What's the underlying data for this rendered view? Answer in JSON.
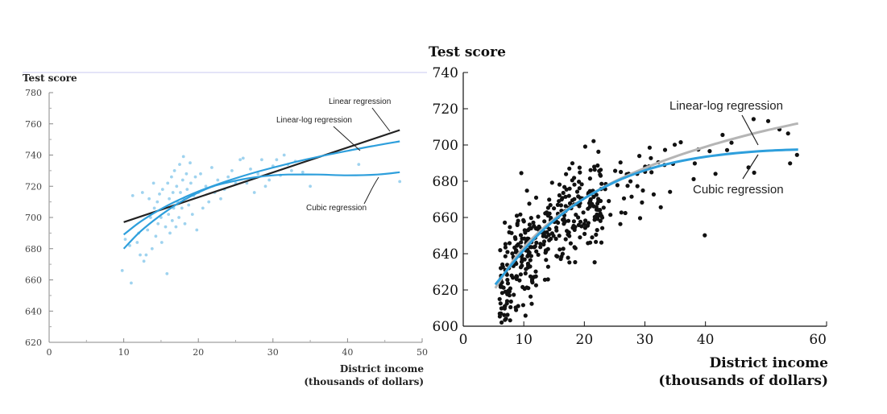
{
  "chart_data": [
    {
      "type": "scatter",
      "ylabel": "Test score",
      "xlabel_line1": "District income",
      "xlabel_line2": "(thousands of dollars)",
      "xlim": [
        0,
        50
      ],
      "ylim": [
        620,
        780
      ],
      "x_ticks": [
        "0",
        "10",
        "20",
        "30",
        "40",
        "50"
      ],
      "y_ticks": [
        "620",
        "640",
        "660",
        "680",
        "700",
        "720",
        "740",
        "760",
        "780"
      ],
      "colors": {
        "points": "#9fd3ef",
        "linear": "#222222",
        "quadratic": "#2e9fdc",
        "cubic": "#2e9fdc"
      },
      "points": [
        [
          9.8,
          666
        ],
        [
          10.2,
          686
        ],
        [
          10.8,
          682
        ],
        [
          11,
          658
        ],
        [
          11.2,
          714
        ],
        [
          11.8,
          684
        ],
        [
          12,
          690
        ],
        [
          12.2,
          676
        ],
        [
          12.5,
          716
        ],
        [
          12.7,
          672
        ],
        [
          13,
          676
        ],
        [
          13.2,
          692
        ],
        [
          13.4,
          712
        ],
        [
          13.6,
          700
        ],
        [
          13.8,
          680
        ],
        [
          14,
          722
        ],
        [
          14.1,
          706
        ],
        [
          14.3,
          688
        ],
        [
          14.5,
          710
        ],
        [
          14.6,
          696
        ],
        [
          14.8,
          715
        ],
        [
          15,
          700
        ],
        [
          15.1,
          684
        ],
        [
          15.2,
          718
        ],
        [
          15.4,
          706
        ],
        [
          15.6,
          694
        ],
        [
          15.8,
          664
        ],
        [
          15.9,
          722
        ],
        [
          16,
          702
        ],
        [
          16.1,
          712
        ],
        [
          16.2,
          690
        ],
        [
          16.4,
          726
        ],
        [
          16.5,
          698
        ],
        [
          16.6,
          716
        ],
        [
          16.7,
          706
        ],
        [
          16.8,
          730
        ],
        [
          17,
          694
        ],
        [
          17.1,
          720
        ],
        [
          17.2,
          710
        ],
        [
          17.4,
          700
        ],
        [
          17.5,
          734
        ],
        [
          17.6,
          716
        ],
        [
          17.8,
          706
        ],
        [
          17.9,
          724
        ],
        [
          18,
          739
        ],
        [
          18.1,
          712
        ],
        [
          18.2,
          696
        ],
        [
          18.4,
          728
        ],
        [
          18.5,
          718
        ],
        [
          18.7,
          708
        ],
        [
          18.9,
          735
        ],
        [
          19,
          722
        ],
        [
          19.2,
          702
        ],
        [
          19.4,
          714
        ],
        [
          19.6,
          726
        ],
        [
          19.8,
          692
        ],
        [
          20,
          716
        ],
        [
          20.3,
          728
        ],
        [
          20.6,
          706
        ],
        [
          21,
          720
        ],
        [
          21.4,
          710
        ],
        [
          21.8,
          732
        ],
        [
          22.2,
          716
        ],
        [
          22.6,
          724
        ],
        [
          23,
          712
        ],
        [
          23.5,
          718
        ],
        [
          24,
          726
        ],
        [
          24.5,
          730
        ],
        [
          25,
          722
        ],
        [
          25.6,
          737
        ],
        [
          26,
          738
        ],
        [
          26.5,
          722
        ],
        [
          27,
          731
        ],
        [
          27.5,
          716
        ],
        [
          28,
          728
        ],
        [
          28.5,
          737
        ],
        [
          29,
          720
        ],
        [
          29.5,
          724
        ],
        [
          30,
          733
        ],
        [
          30.5,
          737
        ],
        [
          31,
          727
        ],
        [
          31.5,
          740
        ],
        [
          32,
          734
        ],
        [
          32.5,
          730
        ],
        [
          33,
          736
        ],
        [
          34,
          729
        ],
        [
          35,
          720
        ],
        [
          41.5,
          734
        ],
        [
          47,
          723
        ]
      ],
      "series": [
        {
          "name": "Linear regression",
          "x": [
            10,
            47
          ],
          "y": [
            697,
            756
          ]
        },
        {
          "name": "Linear-log regression",
          "x": [
            10,
            12,
            14,
            16,
            18,
            20,
            24,
            28,
            32,
            36,
            40,
            44,
            47
          ],
          "y": [
            689,
            696.5,
            702.7,
            708,
            712.6,
            716.7,
            723.6,
            729.4,
            734.4,
            738.8,
            742.7,
            746.3,
            748.8
          ]
        },
        {
          "name": "Cubic regression",
          "x": [
            10,
            12,
            14,
            16,
            18,
            20,
            22,
            24,
            26,
            28,
            30,
            32,
            36,
            40,
            44,
            47
          ],
          "y": [
            680,
            690,
            698,
            705,
            711,
            716,
            720,
            722.5,
            724.5,
            726,
            727,
            727.5,
            727.5,
            727,
            727.5,
            729
          ]
        }
      ]
    },
    {
      "type": "scatter",
      "ylabel": "Test score",
      "xlabel_line1": "District income",
      "xlabel_line2": "(thousands of dollars)",
      "xlim": [
        0,
        60
      ],
      "ylim": [
        600,
        740
      ],
      "x_ticks": [
        "0",
        "10",
        "20",
        "30",
        "40",
        "60"
      ],
      "y_ticks": [
        "600",
        "620",
        "640",
        "660",
        "680",
        "700",
        "720",
        "740"
      ],
      "colors": {
        "points": "#111111",
        "linear_log": "#b5b5b5",
        "cubic": "#2e9fdc"
      },
      "series": [
        {
          "name": "Linear-log regression",
          "x": [
            5.3,
            8,
            10,
            13,
            16,
            20,
            25,
            30,
            35,
            40,
            45,
            50,
            55.3
          ],
          "y": [
            621,
            635,
            643.5,
            653.5,
            661.6,
            670.6,
            679.9,
            687.3,
            693.6,
            699,
            703.8,
            708,
            711.9
          ]
        },
        {
          "name": "Cubic regression",
          "x": [
            5.3,
            8,
            10,
            13,
            16,
            20,
            25,
            30,
            35,
            40,
            45,
            50,
            55.3
          ],
          "y": [
            623,
            634,
            642,
            652.5,
            661,
            670.5,
            679.5,
            686,
            690.5,
            693.5,
            695.5,
            696.8,
            697.5
          ]
        }
      ]
    }
  ]
}
